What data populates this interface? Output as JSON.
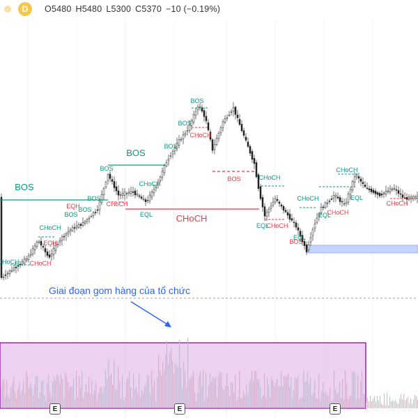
{
  "header": {
    "interval": "D",
    "open": "O5480",
    "high": "H5480",
    "low": "L5300",
    "close": "C5370",
    "change": "−10 (−0.19%)"
  },
  "chart_data": {
    "type": "candlestick",
    "title": "",
    "labels": [
      {
        "text": "BOS",
        "color": "#089981"
      },
      {
        "text": "BOS",
        "color": "#089981"
      },
      {
        "text": "BOS",
        "color": "#089981"
      },
      {
        "text": "BOS",
        "color": "#089981"
      },
      {
        "text": "BOS",
        "color": "#089981"
      },
      {
        "text": "BOS",
        "color": "#089981"
      },
      {
        "text": "BOS",
        "color": "#089981"
      },
      {
        "text": "BOS",
        "color": "#089981"
      },
      {
        "text": "BOS",
        "color": "#089981"
      },
      {
        "text": "BOS",
        "color": "#f23645"
      },
      {
        "text": "BOS",
        "color": "#f23645"
      },
      {
        "text": "CHoCH",
        "color": "#089981"
      },
      {
        "text": "CHoCH",
        "color": "#089981"
      },
      {
        "text": "CHoCH",
        "color": "#089981"
      },
      {
        "text": "CHoCH",
        "color": "#089981"
      },
      {
        "text": "CHoCH",
        "color": "#089981"
      },
      {
        "text": "CHoCH",
        "color": "#089981"
      },
      {
        "text": "CHoCH",
        "color": "#f23645"
      },
      {
        "text": "CHoCH",
        "color": "#f23645"
      },
      {
        "text": "CHoCH",
        "color": "#f23645"
      },
      {
        "text": "CHoCH",
        "color": "#f23645"
      },
      {
        "text": "CHoCH",
        "color": "#f23645"
      },
      {
        "text": "CHoCH",
        "color": "#f23645"
      },
      {
        "text": "CHoCH",
        "color": "#f23645"
      },
      {
        "text": "EQH",
        "color": "#f23645"
      },
      {
        "text": "EQH",
        "color": "#f23645"
      },
      {
        "text": "EQL",
        "color": "#089981"
      },
      {
        "text": "EQL",
        "color": "#089981"
      },
      {
        "text": "EQL",
        "color": "#089981"
      },
      {
        "text": "EQL",
        "color": "#089981"
      },
      {
        "text": "EQL",
        "color": "#089981"
      }
    ],
    "zones": [
      {
        "name": "volume-accumulation-box",
        "color": "#9c27b0"
      },
      {
        "name": "demand-zone",
        "color": "#2962ff"
      }
    ],
    "annotation": "Giai đoạn gom hàng của tổ chức",
    "earnings_marker": "E",
    "colors": {
      "up": "#089981",
      "down": "#f23645"
    }
  }
}
